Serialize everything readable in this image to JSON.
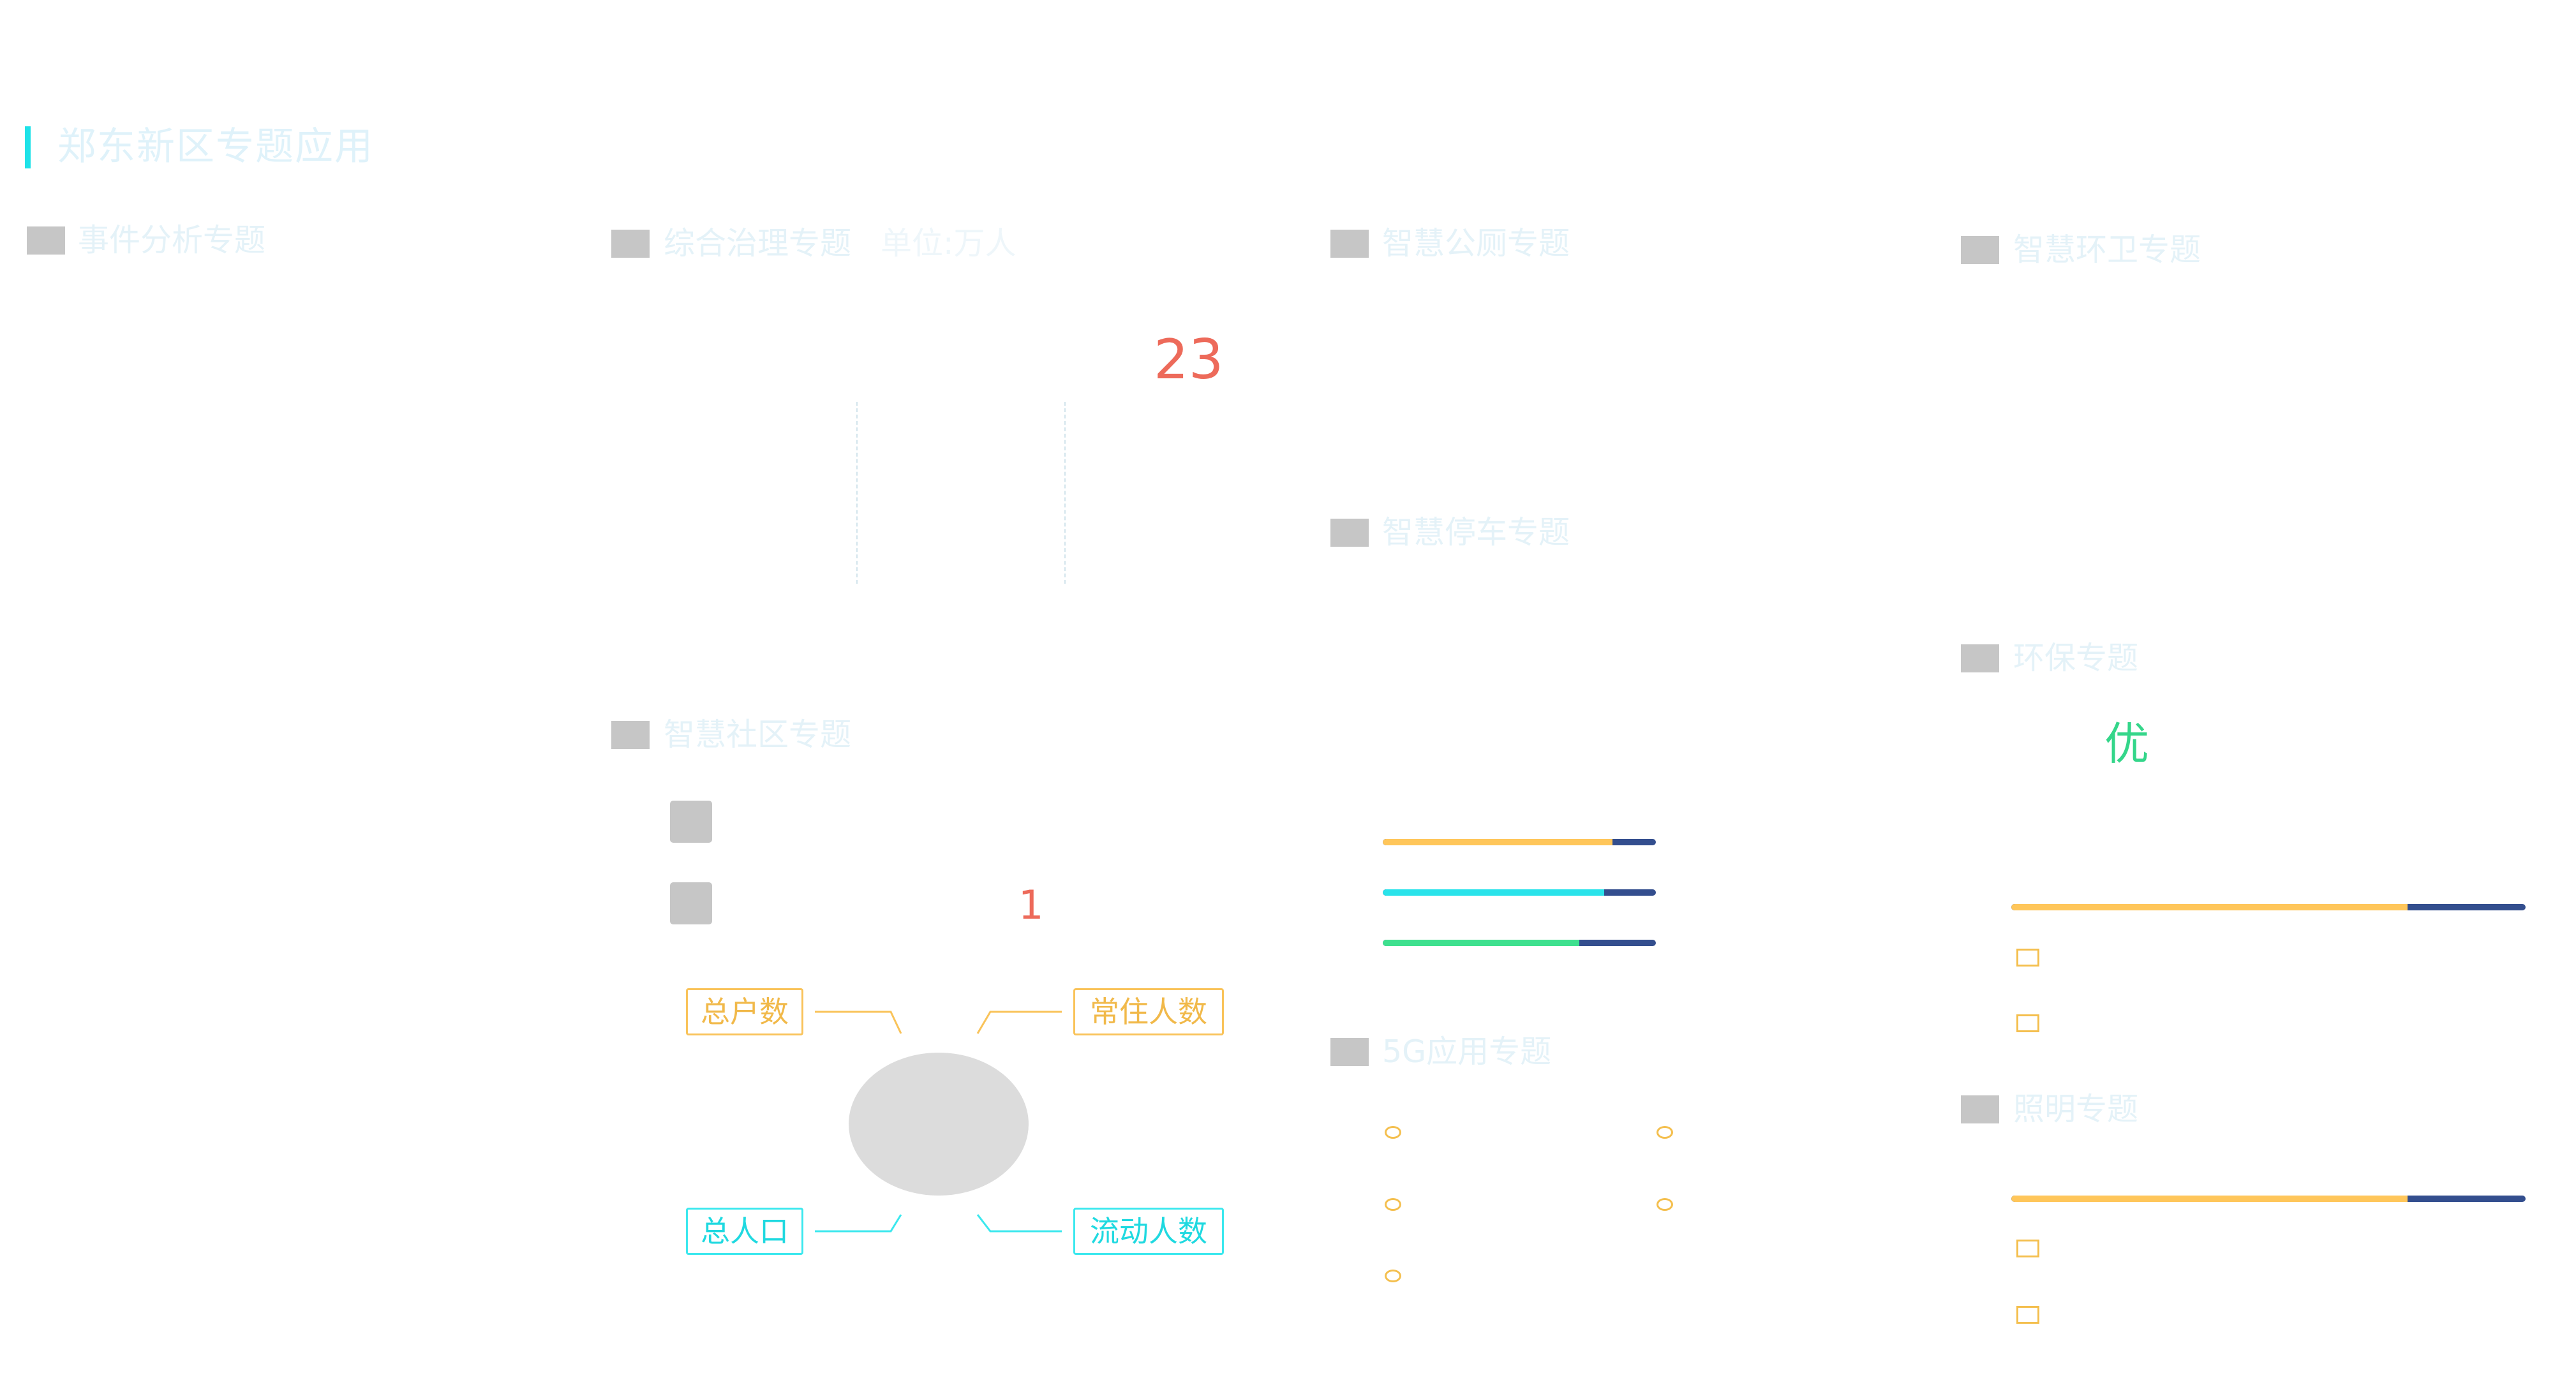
{
  "page": {
    "title": "郑东新区专题应用"
  },
  "sections": {
    "event": {
      "title": "事件分析专题"
    },
    "governance": {
      "title": "综合治理专题",
      "unit": "单位:万人",
      "value": "23"
    },
    "toilet": {
      "title": "智慧公厕专题"
    },
    "sanitation": {
      "title": "智慧环卫专题"
    },
    "parking": {
      "title": "智慧停车专题",
      "bars": [
        {
          "color": "#ffc65a",
          "fraction": 0.84
        },
        {
          "color": "#2ae3ea",
          "fraction": 0.81
        },
        {
          "color": "#3ee08e",
          "fraction": 0.72
        }
      ]
    },
    "community": {
      "title": "智慧社区专题",
      "value": "1",
      "labels": {
        "households": "总户数",
        "residents": "常住人数",
        "population": "总人口",
        "floating": "流动人数"
      }
    },
    "env": {
      "title": "环保专题",
      "grade": "优",
      "bar": {
        "color": "#ffc65a",
        "fraction": 0.77
      }
    },
    "g5": {
      "title": "5G应用专题"
    },
    "lighting": {
      "title": "照明专题",
      "bar": {
        "color": "#ffc65a",
        "fraction": 0.77
      }
    }
  },
  "colors": {
    "accent": "#1ee2e8",
    "track": "#334e8e",
    "red": "#ed6a5a",
    "green": "#34d68a",
    "yellow": "#f9c35a"
  }
}
